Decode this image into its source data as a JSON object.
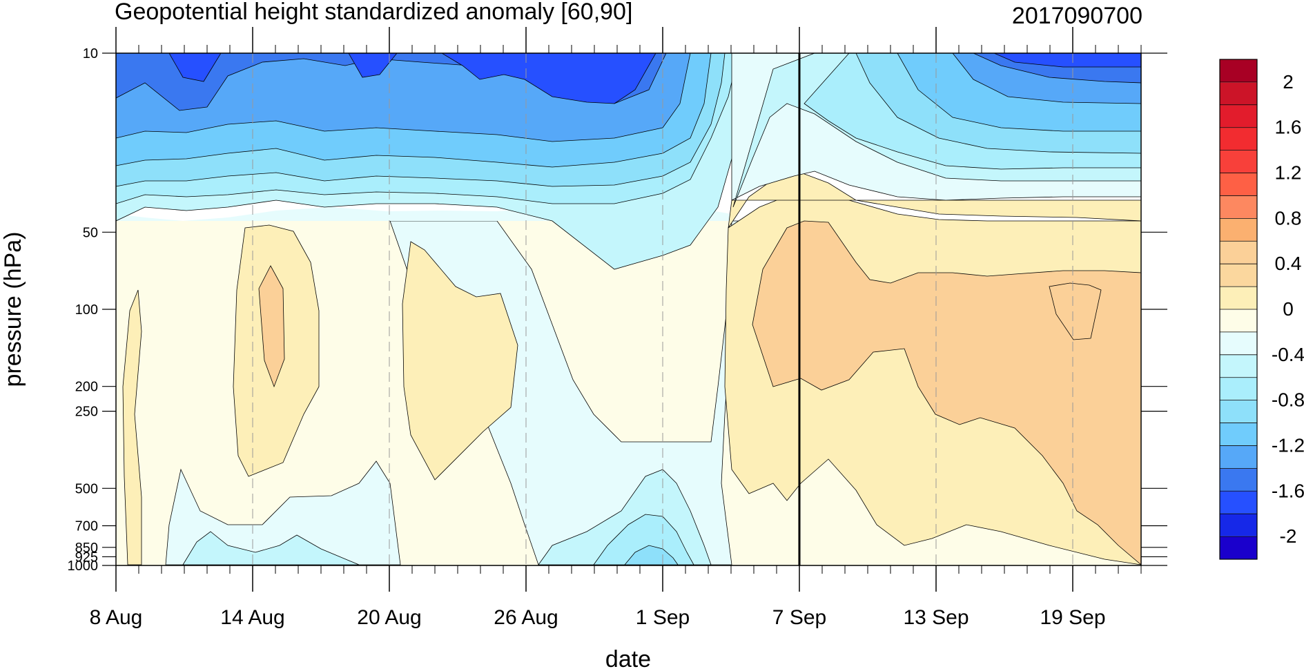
{
  "chart_data": {
    "type": "heatmap",
    "subtype": "filled-contour",
    "title": "Geopotential height standardized anomaly [60,90]",
    "timestamp_label": "2017090700",
    "xlabel": "date",
    "ylabel": "pressure (hPa)",
    "y_scale": "log",
    "y_reversed": true,
    "ylim": [
      1000,
      10
    ],
    "xlim": [
      "2017-08-08",
      "2017-09-22"
    ],
    "x_ticks": [
      {
        "label": "8 Aug",
        "date": "2017-08-08"
      },
      {
        "label": "14 Aug",
        "date": "2017-08-14"
      },
      {
        "label": "20 Aug",
        "date": "2017-08-20"
      },
      {
        "label": "26 Aug",
        "date": "2017-08-26"
      },
      {
        "label": "1 Sep",
        "date": "2017-09-01"
      },
      {
        "label": "7 Sep",
        "date": "2017-09-07"
      },
      {
        "label": "13 Sep",
        "date": "2017-09-13"
      },
      {
        "label": "19 Sep",
        "date": "2017-09-19"
      }
    ],
    "y_ticks": [
      {
        "label": "10",
        "value": 10
      },
      {
        "label": "50",
        "value": 50
      },
      {
        "label": "100",
        "value": 100
      },
      {
        "label": "200",
        "value": 200
      },
      {
        "label": "250",
        "value": 250
      },
      {
        "label": "500",
        "value": 500
      },
      {
        "label": "700",
        "value": 700
      },
      {
        "label": "850",
        "value": 850
      },
      {
        "label": "925",
        "value": 925
      },
      {
        "label": "1000",
        "value": 1000
      }
    ],
    "vertical_marker": {
      "date": "2017-09-07",
      "label": "7 Sep"
    },
    "grid": "dashed vertical lines at labeled dates",
    "colorbar": {
      "placement": "right",
      "labels": [
        "2",
        "1.6",
        "1.2",
        "0.8",
        "0.4",
        "0",
        "-0.4",
        "-0.8",
        "-1.2",
        "-1.6",
        "-2"
      ],
      "levels": [
        -2.2,
        -2.0,
        -1.8,
        -1.6,
        -1.4,
        -1.2,
        -1.0,
        -0.8,
        -0.6,
        -0.4,
        -0.2,
        0,
        0.2,
        0.4,
        0.6,
        0.8,
        1.0,
        1.2,
        1.4,
        1.6,
        1.8,
        2.0,
        2.2
      ],
      "colors": [
        "#1a00cc",
        "#1628e8",
        "#2650ff",
        "#3a78f0",
        "#56a8f8",
        "#70ccfc",
        "#8ee0fa",
        "#aaeefc",
        "#c4f6fc",
        "#e6fcfd",
        "#fefde8",
        "#fdefb8",
        "#fbd79e",
        "#fbd098",
        "#fbb070",
        "#fd8860",
        "#fe6045",
        "#f8403a",
        "#f22c30",
        "#e21c2c",
        "#cc1428",
        "#a80024"
      ]
    },
    "anomaly_fields": [
      {
        "region": "upper stratosphere 10-50 hPa, 8 Aug - 5 Sep",
        "value_range": [
          -1.8,
          -0.2
        ],
        "tone": "negative"
      },
      {
        "region": "upper stratosphere 10-50 hPa, 10 Sep - 22 Sep",
        "value_range": [
          -1.6,
          0.0
        ],
        "tone": "negative"
      },
      {
        "region": "troposphere 50-1000 hPa, 4 Sep - 22 Sep",
        "value_range": [
          0.0,
          0.8
        ],
        "tone": "positive"
      },
      {
        "region": "near 100-200 hPa, 15 Aug",
        "value_range": [
          0.4,
          0.6
        ],
        "tone": "positive"
      },
      {
        "region": "near surface 700-1000 hPa, 30 Aug - 2 Sep",
        "value_range": [
          -0.8,
          -0.2
        ],
        "tone": "negative"
      }
    ]
  }
}
